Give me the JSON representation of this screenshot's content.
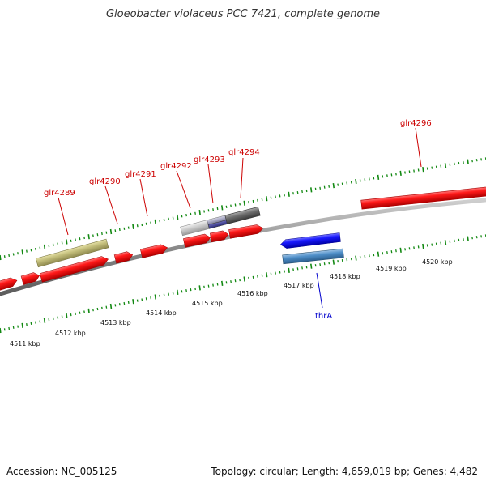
{
  "title": "Gloeobacter violaceus PCC 7421, complete genome",
  "footer": {
    "accession": "Accession: NC_005125",
    "summary": "Topology: circular; Length: 4,659,019 bp; Genes: 4,482"
  },
  "colors": {
    "red_gene": "#ee1111",
    "blue_gene": "#1111ee",
    "label_red": "#cc0000",
    "label_blue": "#0000cc",
    "tick_green": "#118811"
  },
  "kbp_labels": [
    "4511 kbp",
    "4512 kbp",
    "4513 kbp",
    "4514 kbp",
    "4515 kbp",
    "4516 kbp",
    "4517 kbp",
    "4518 kbp",
    "4519 kbp",
    "4520 kbp"
  ],
  "gene_labels": [
    {
      "text": "glr4289",
      "strand": "forward"
    },
    {
      "text": "glr4290",
      "strand": "forward"
    },
    {
      "text": "glr4291",
      "strand": "forward"
    },
    {
      "text": "glr4292",
      "strand": "forward"
    },
    {
      "text": "glr4293",
      "strand": "forward"
    },
    {
      "text": "glr4294",
      "strand": "forward"
    },
    {
      "text": "glr4296",
      "strand": "forward"
    },
    {
      "text": "thrA",
      "strand": "reverse"
    }
  ]
}
